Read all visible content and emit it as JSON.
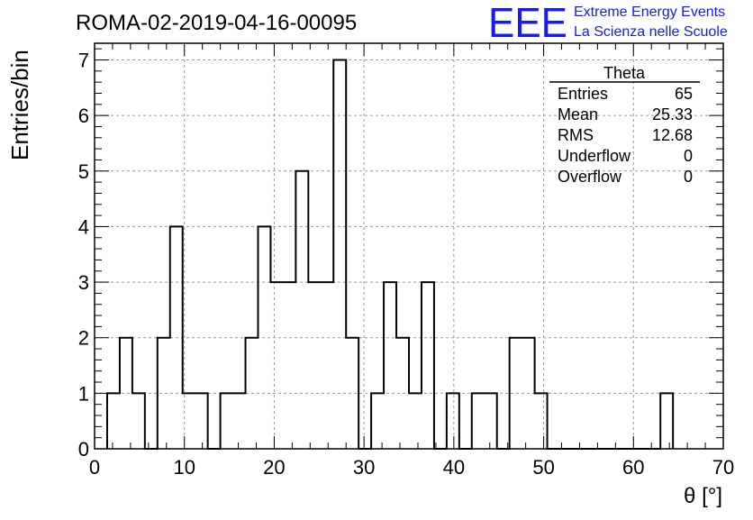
{
  "header": {
    "run_title": "ROMA-02-2019-04-16-00095",
    "logo_text": "EEE",
    "logo_line1": "Extreme Energy Events",
    "logo_line2": "La Scienza nelle Scuole",
    "logo_color": "#1a1aee"
  },
  "stats": {
    "title": "Theta",
    "rows": [
      {
        "label": "Entries",
        "value": "65"
      },
      {
        "label": "Mean",
        "value": "25.33"
      },
      {
        "label": "RMS",
        "value": "12.68"
      },
      {
        "label": "Underflow",
        "value": "0"
      },
      {
        "label": "Overflow",
        "value": "0"
      }
    ]
  },
  "chart_data": {
    "type": "bar",
    "style": "step-histogram",
    "xlabel": "θ [°]",
    "ylabel": "Entries/bin",
    "xlim": [
      0,
      70
    ],
    "ylim": [
      0,
      7.3
    ],
    "grid": true,
    "x_ticks": [
      0,
      10,
      20,
      30,
      40,
      50,
      60,
      70
    ],
    "y_ticks": [
      0,
      1,
      2,
      3,
      4,
      5,
      6,
      7
    ],
    "bin_edges": [
      1.4,
      2.8,
      4.2,
      5.6,
      7.0,
      8.4,
      9.8,
      11.2,
      12.6,
      14.0,
      15.4,
      16.8,
      18.2,
      19.6,
      21.0,
      22.4,
      23.8,
      25.2,
      26.6,
      28.0,
      29.4,
      30.8,
      32.2,
      33.6,
      35.0,
      36.4,
      37.8,
      39.2,
      40.6,
      42.0,
      43.4,
      44.8,
      46.2,
      47.6,
      49.0,
      50.4,
      51.8,
      53.2,
      54.6,
      56.0,
      57.4,
      58.8,
      60.2,
      61.6,
      63.0,
      64.4
    ],
    "values": [
      1,
      2,
      1,
      0,
      2,
      4,
      1,
      1,
      0,
      1,
      1,
      2,
      4,
      3,
      3,
      5,
      3,
      3,
      7,
      2,
      0,
      1,
      3,
      2,
      1,
      3,
      0,
      1,
      0,
      1,
      1,
      0,
      2,
      2,
      1,
      0,
      0,
      0,
      0,
      0,
      0,
      0,
      0,
      0,
      1
    ],
    "line_color": "#000000"
  }
}
